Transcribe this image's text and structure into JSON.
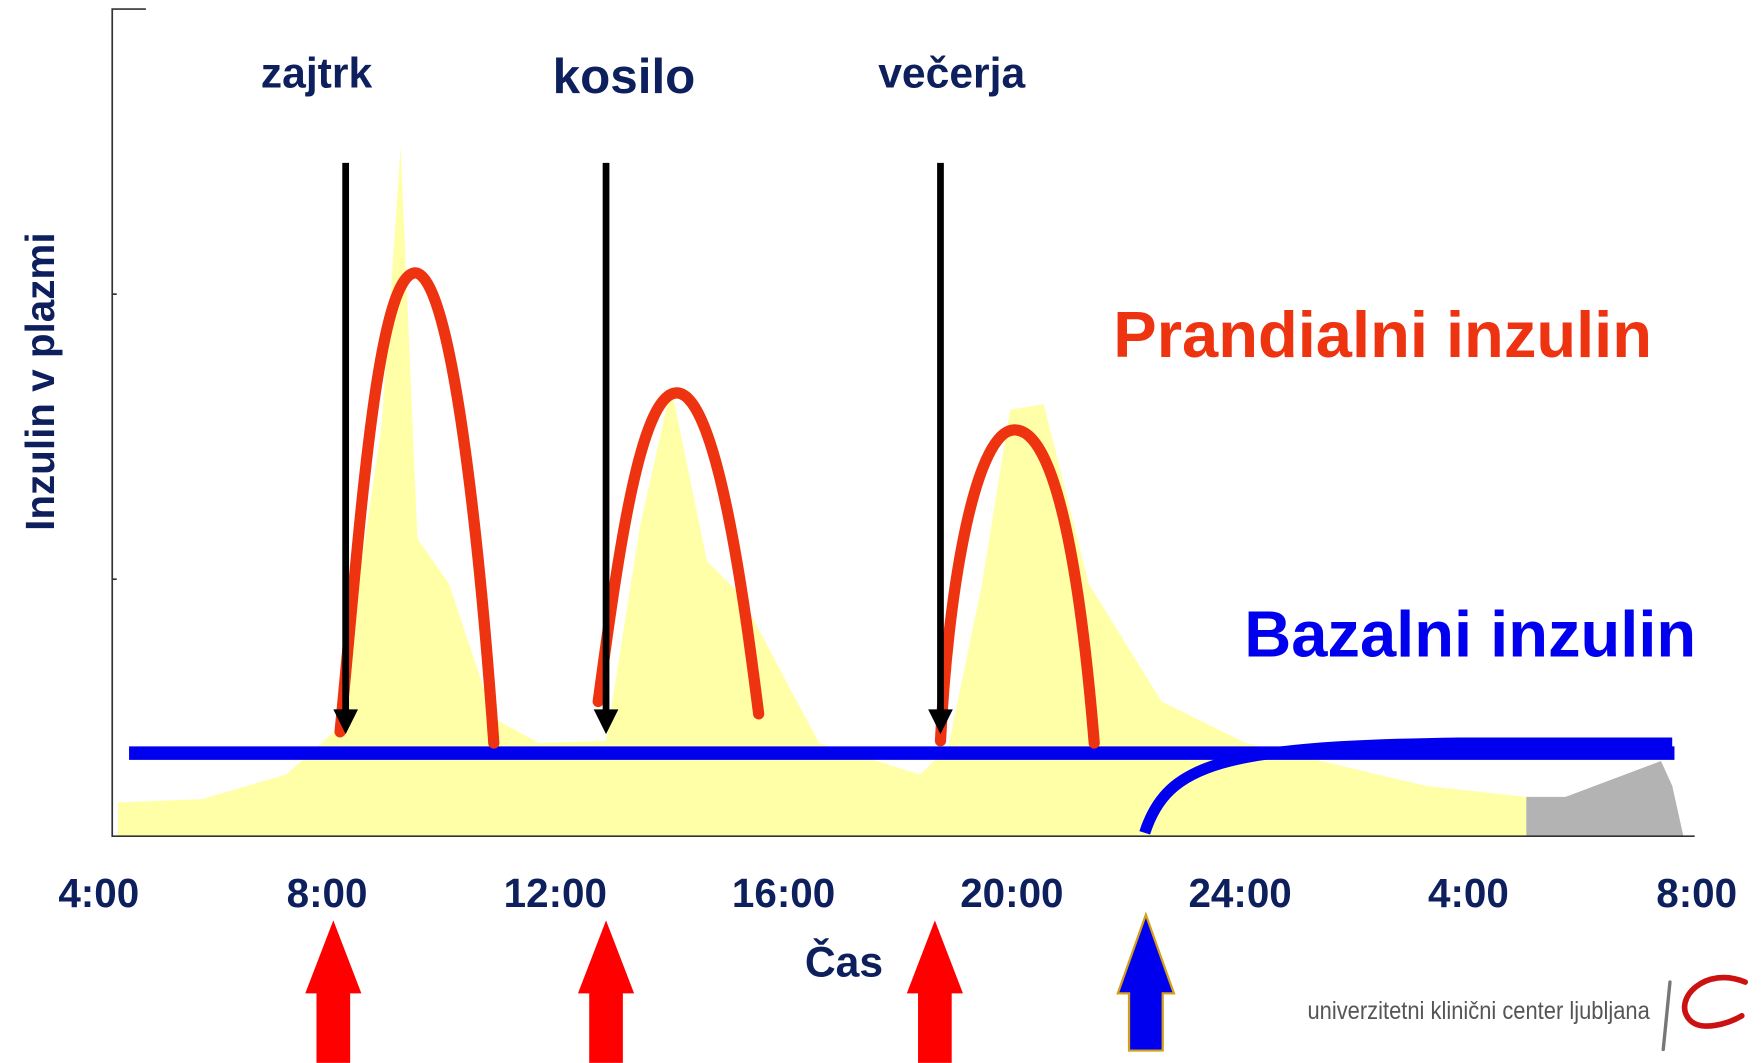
{
  "y_label": "Inzulin v plazmi",
  "x_label": "Čas",
  "x_ticks": [
    "4:00",
    "8:00",
    "12:00",
    "16:00",
    "20:00",
    "24:00",
    "4:00",
    "8:00"
  ],
  "meals": [
    "zajtrk",
    "kosilo",
    "večerja"
  ],
  "legend": {
    "prandial": "Prandialni inzulin",
    "basal": "Bazalni inzulin"
  },
  "logo": "univerzitetni klinični center ljubljana"
}
